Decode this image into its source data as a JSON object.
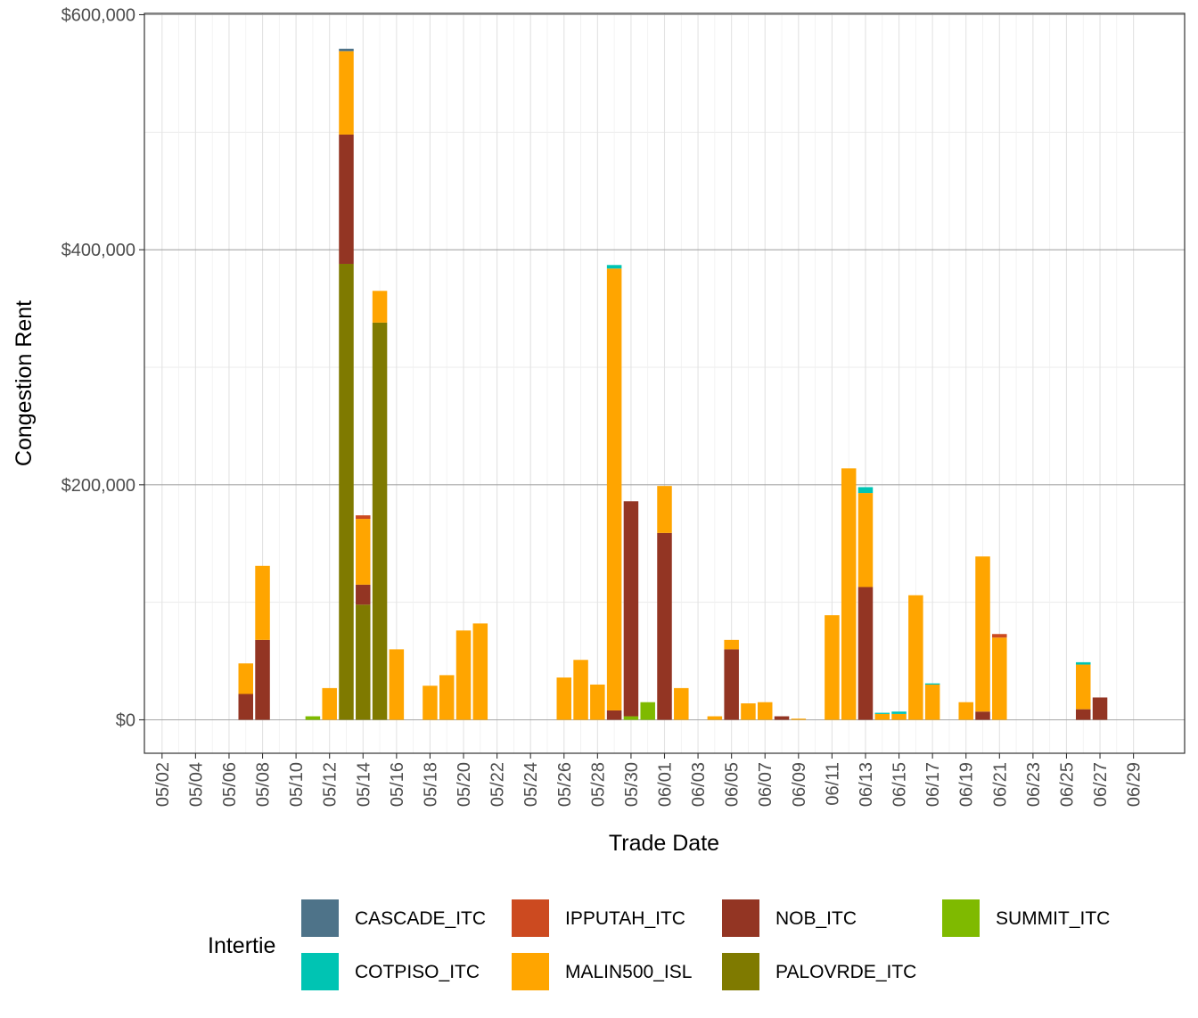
{
  "chart_data": {
    "type": "bar",
    "stacked": true,
    "title": "",
    "xlabel": "Trade Date",
    "ylabel": "Congestion Rent",
    "ylim": [
      -55000,
      600000
    ],
    "yticks": [
      0,
      200000,
      400000,
      600000
    ],
    "ytick_labels": [
      "$0",
      "$200,000",
      "$400,000",
      "$600,000"
    ],
    "x_tick_labels": [
      "05/02",
      "05/04",
      "05/06",
      "05/08",
      "05/10",
      "05/12",
      "05/14",
      "05/16",
      "05/18",
      "05/20",
      "05/22",
      "05/24",
      "05/26",
      "05/28",
      "05/30",
      "06/01",
      "06/03",
      "06/05",
      "06/07",
      "06/09",
      "06/11",
      "06/13",
      "06/15",
      "06/17",
      "06/19",
      "06/21",
      "06/23",
      "06/25",
      "06/27",
      "06/29"
    ],
    "dates": [
      "05/02",
      "05/03",
      "05/04",
      "05/05",
      "05/06",
      "05/07",
      "05/08",
      "05/09",
      "05/10",
      "05/11",
      "05/12",
      "05/13",
      "05/14",
      "05/15",
      "05/16",
      "05/17",
      "05/18",
      "05/19",
      "05/20",
      "05/21",
      "05/22",
      "05/23",
      "05/24",
      "05/25",
      "05/26",
      "05/27",
      "05/28",
      "05/29",
      "05/30",
      "05/31",
      "06/01",
      "06/02",
      "06/03",
      "06/04",
      "06/05",
      "06/06",
      "06/07",
      "06/08",
      "06/09",
      "06/10",
      "06/11",
      "06/12",
      "06/13",
      "06/14",
      "06/15",
      "06/16",
      "06/17",
      "06/18",
      "06/19",
      "06/20",
      "06/21",
      "06/22",
      "06/23",
      "06/24",
      "06/25",
      "06/26",
      "06/27",
      "06/28",
      "06/29"
    ],
    "legend_title": "Intertie",
    "legend_position": "bottom",
    "series": [
      {
        "name": "PALOVRDE_ITC",
        "color": "#7f7a00",
        "values": [
          0,
          0,
          0,
          0,
          0,
          0,
          0,
          0,
          0,
          0,
          0,
          388000,
          98000,
          338000,
          0,
          0,
          0,
          0,
          0,
          0,
          0,
          0,
          0,
          0,
          0,
          0,
          0,
          0,
          0,
          0,
          0,
          0,
          0,
          0,
          0,
          0,
          0,
          0,
          0,
          0,
          0,
          0,
          0,
          0,
          0,
          0,
          0,
          0,
          0,
          0,
          0,
          0,
          0,
          0,
          0,
          0,
          0,
          0,
          0
        ]
      },
      {
        "name": "SUMMIT_ITC",
        "color": "#7fba00",
        "values": [
          0,
          0,
          0,
          0,
          0,
          0,
          0,
          0,
          0,
          3000,
          0,
          0,
          0,
          0,
          0,
          0,
          0,
          0,
          0,
          0,
          0,
          0,
          0,
          0,
          0,
          0,
          0,
          0,
          3000,
          15000,
          0,
          0,
          0,
          0,
          0,
          0,
          0,
          0,
          0,
          0,
          0,
          0,
          0,
          0,
          0,
          0,
          0,
          0,
          0,
          0,
          0,
          0,
          0,
          0,
          0,
          0,
          0,
          0,
          0
        ]
      },
      {
        "name": "NOB_ITC",
        "color": "#933523",
        "values": [
          0,
          0,
          0,
          0,
          0,
          22000,
          68000,
          0,
          0,
          0,
          0,
          110000,
          17000,
          0,
          0,
          0,
          0,
          0,
          0,
          0,
          0,
          0,
          0,
          0,
          0,
          0,
          0,
          8000,
          183000,
          0,
          159000,
          0,
          0,
          0,
          60000,
          0,
          0,
          3000,
          0,
          0,
          0,
          0,
          113000,
          0,
          0,
          0,
          0,
          0,
          0,
          7000,
          0,
          0,
          0,
          0,
          0,
          9000,
          19000,
          0,
          0
        ]
      },
      {
        "name": "MALIN500_ISL",
        "color": "#ffa500",
        "values": [
          0,
          0,
          0,
          0,
          0,
          26000,
          63000,
          0,
          0,
          0,
          27000,
          71000,
          56000,
          27000,
          60000,
          0,
          29000,
          38000,
          76000,
          82000,
          0,
          0,
          0,
          0,
          36000,
          51000,
          30000,
          376000,
          0,
          0,
          40000,
          27000,
          0,
          3000,
          8000,
          14000,
          15000,
          0,
          1000,
          0,
          89000,
          214000,
          80000,
          5000,
          5000,
          106000,
          30000,
          0,
          15000,
          132000,
          70000,
          0,
          0,
          0,
          0,
          38000,
          0,
          0,
          0
        ]
      },
      {
        "name": "IPPUTAH_ITC",
        "color": "#cc4a20",
        "values": [
          0,
          0,
          0,
          0,
          0,
          0,
          0,
          0,
          0,
          0,
          0,
          0,
          3000,
          0,
          0,
          0,
          0,
          0,
          0,
          0,
          0,
          0,
          0,
          0,
          0,
          0,
          0,
          0,
          0,
          0,
          0,
          0,
          0,
          0,
          0,
          0,
          0,
          0,
          0,
          0,
          0,
          0,
          0,
          0,
          0,
          0,
          0,
          0,
          0,
          0,
          3000,
          0,
          0,
          0,
          0,
          0,
          0,
          0,
          0
        ]
      },
      {
        "name": "COTPISO_ITC",
        "color": "#00c4b3",
        "values": [
          0,
          0,
          0,
          0,
          0,
          0,
          0,
          0,
          0,
          0,
          0,
          0,
          0,
          0,
          0,
          0,
          0,
          0,
          0,
          0,
          0,
          0,
          0,
          0,
          0,
          0,
          0,
          3000,
          0,
          0,
          0,
          0,
          0,
          0,
          0,
          0,
          0,
          0,
          0,
          0,
          0,
          0,
          5000,
          1000,
          2000,
          0,
          1000,
          0,
          0,
          0,
          0,
          0,
          0,
          0,
          0,
          2000,
          0,
          0,
          0
        ]
      },
      {
        "name": "CASCADE_ITC",
        "color": "#4e7389",
        "values": [
          0,
          0,
          0,
          0,
          0,
          0,
          0,
          0,
          0,
          0,
          0,
          2000,
          0,
          0,
          0,
          0,
          0,
          0,
          0,
          0,
          0,
          0,
          0,
          0,
          0,
          0,
          0,
          0,
          0,
          0,
          0,
          0,
          0,
          0,
          0,
          0,
          0,
          0,
          0,
          0,
          0,
          0,
          0,
          0,
          0,
          0,
          0,
          0,
          0,
          0,
          0,
          0,
          0,
          0,
          0,
          0,
          0,
          0,
          0
        ]
      }
    ],
    "legend_order": [
      "CASCADE_ITC",
      "COTPISO_ITC",
      "IPPUTAH_ITC",
      "MALIN500_ISL",
      "NOB_ITC",
      "PALOVRDE_ITC",
      "SUMMIT_ITC"
    ]
  }
}
